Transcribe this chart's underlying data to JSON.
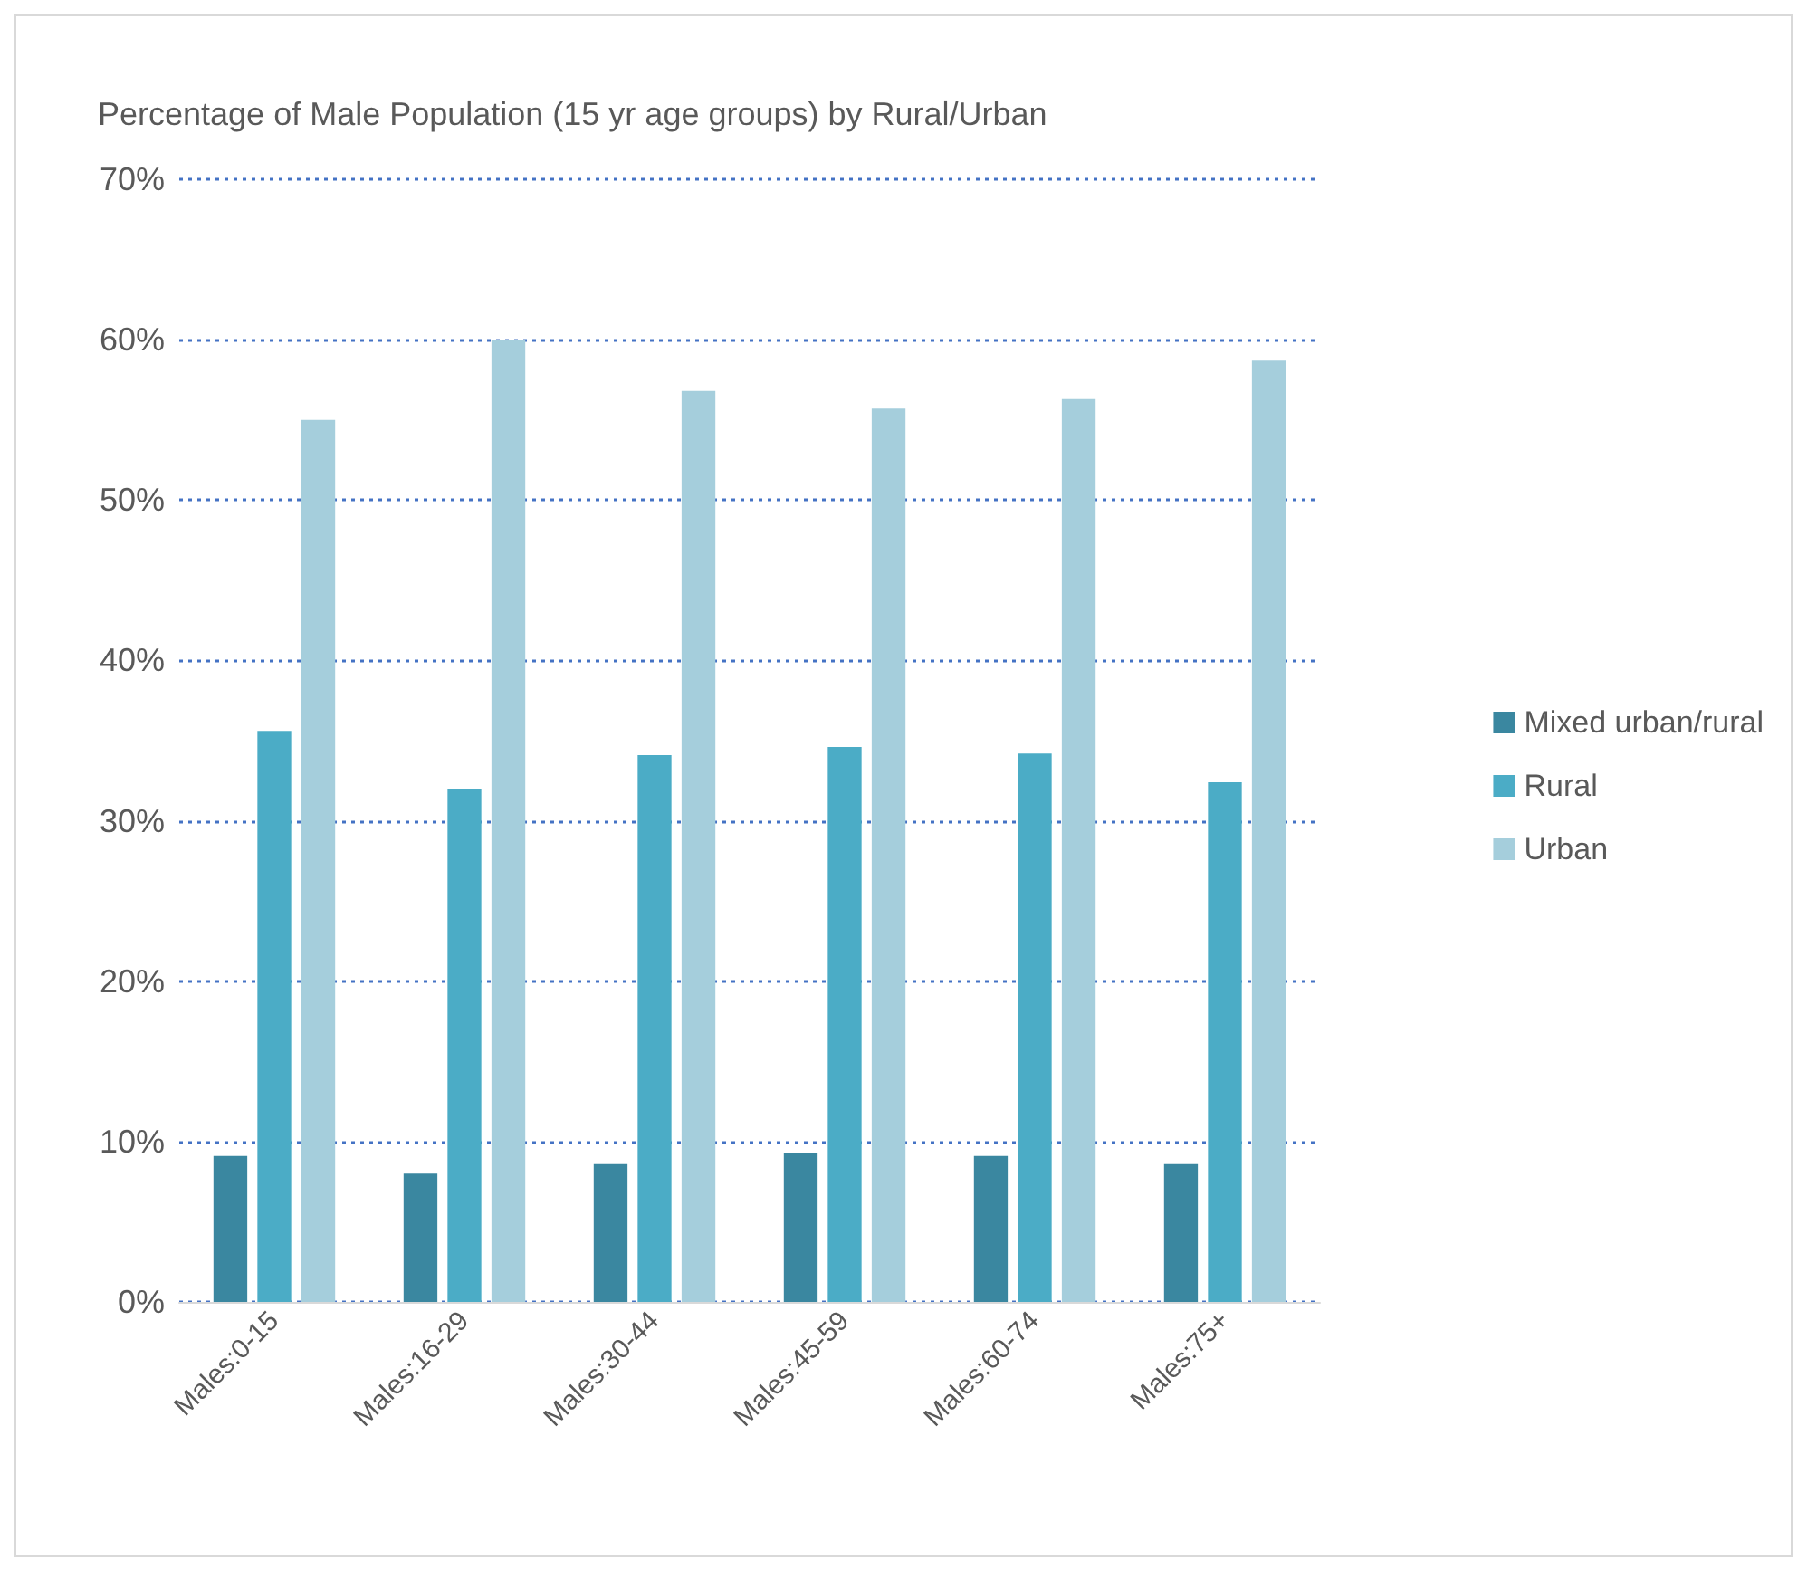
{
  "chart_data": {
    "type": "bar",
    "title": "Percentage of Male Population (15 yr age groups) by Rural/Urban",
    "categories": [
      "Males:0-15",
      "Males:16-29",
      "Males:30-44",
      "Males:45-59",
      "Males:60-74",
      "Males:75+"
    ],
    "series": [
      {
        "name": "Mixed urban/rural",
        "color": "#3a87a0",
        "values": [
          9.1,
          8.0,
          8.6,
          9.3,
          9.1,
          8.6
        ]
      },
      {
        "name": "Rural",
        "color": "#4bacc6",
        "values": [
          35.6,
          32.0,
          34.1,
          34.6,
          34.2,
          32.4
        ]
      },
      {
        "name": "Urban",
        "color": "#a5cedc",
        "values": [
          55.0,
          60.0,
          56.8,
          55.7,
          56.3,
          58.7
        ]
      }
    ],
    "ylim": [
      0,
      70
    ],
    "yticks": [
      {
        "value": 0,
        "label": "0%"
      },
      {
        "value": 10,
        "label": "10%"
      },
      {
        "value": 20,
        "label": "20%"
      },
      {
        "value": 30,
        "label": "30%"
      },
      {
        "value": 40,
        "label": "40%"
      },
      {
        "value": 50,
        "label": "50%"
      },
      {
        "value": 60,
        "label": "60%"
      },
      {
        "value": 70,
        "label": "70%"
      }
    ],
    "grid": "y",
    "legend": "right"
  }
}
